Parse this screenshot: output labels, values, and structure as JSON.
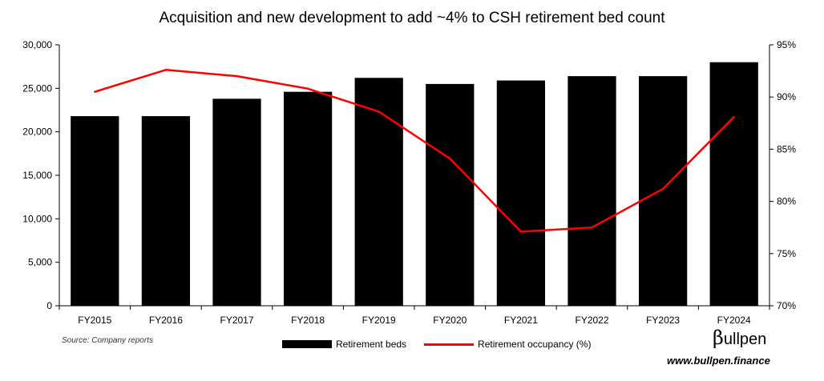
{
  "chart_data": {
    "type": "bar",
    "title": "Acquisition and new development to add ~4% to CSH retirement bed count",
    "categories": [
      "FY2015",
      "FY2016",
      "FY2017",
      "FY2018",
      "FY2019",
      "FY2020",
      "FY2021",
      "FY2022",
      "FY2023",
      "FY2024"
    ],
    "series": [
      {
        "name": "Retirement beds",
        "type": "bar",
        "axis": "left",
        "color": "#000000",
        "values": [
          21800,
          21800,
          23800,
          24600,
          26200,
          25500,
          25900,
          26400,
          26400,
          28000
        ]
      },
      {
        "name": "Retirement occupancy (%)",
        "type": "line",
        "axis": "right",
        "color": "#ff0000",
        "values": [
          90.5,
          92.6,
          92.0,
          90.8,
          88.6,
          84.1,
          77.1,
          77.5,
          81.2,
          88.1
        ]
      }
    ],
    "y_left": {
      "min": 0,
      "max": 30000,
      "ticks": [
        "0",
        "5,000",
        "10,000",
        "15,000",
        "20,000",
        "25,000",
        "30,000"
      ],
      "tick_values": [
        0,
        5000,
        10000,
        15000,
        20000,
        25000,
        30000
      ]
    },
    "y_right": {
      "min": 70,
      "max": 95,
      "ticks": [
        "70%",
        "75%",
        "80%",
        "85%",
        "90%",
        "95%"
      ],
      "tick_values": [
        70,
        75,
        80,
        85,
        90,
        95
      ]
    },
    "grid": false,
    "legend_position": "bottom"
  },
  "source_note": "Source: Company reports",
  "brand": {
    "name": "ullpen",
    "beta": "β",
    "url": "www.bullpen.finance"
  }
}
